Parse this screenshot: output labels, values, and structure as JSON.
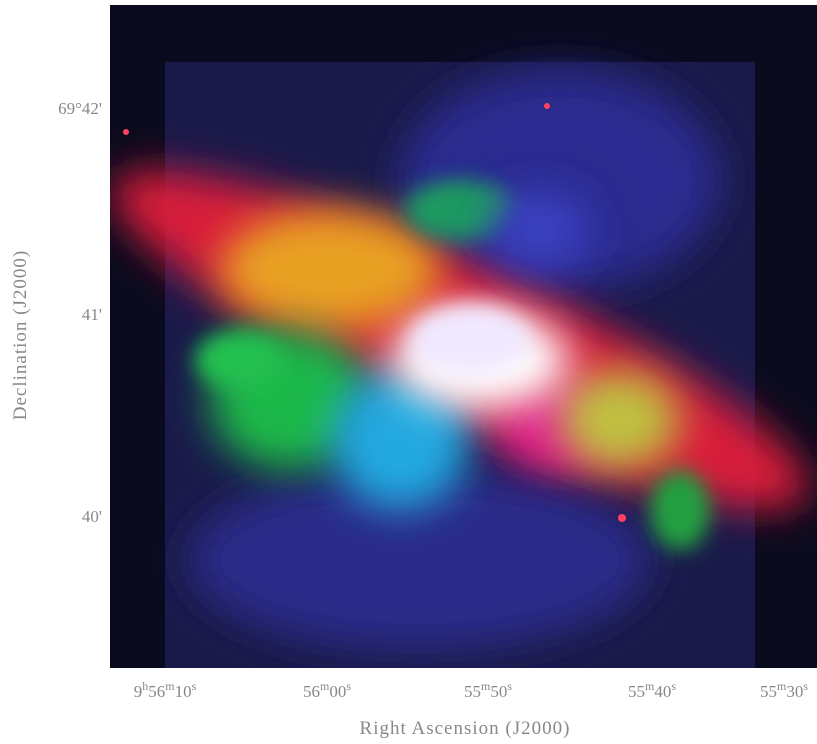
{
  "axes": {
    "x_label": "Right Ascension (J2000)",
    "y_label": "Declination (J2000)",
    "x_ticks": [
      [
        "9",
        "h",
        "56",
        "m",
        "10",
        "s"
      ],
      [
        "56",
        "m",
        "00",
        "s"
      ],
      [
        "55",
        "m",
        "50",
        "s"
      ],
      [
        "55",
        "m",
        "40",
        "s"
      ],
      [
        "55",
        "m",
        "30",
        "s"
      ]
    ],
    "y_ticks": [
      "69°42'",
      "41'",
      "40'"
    ]
  }
}
